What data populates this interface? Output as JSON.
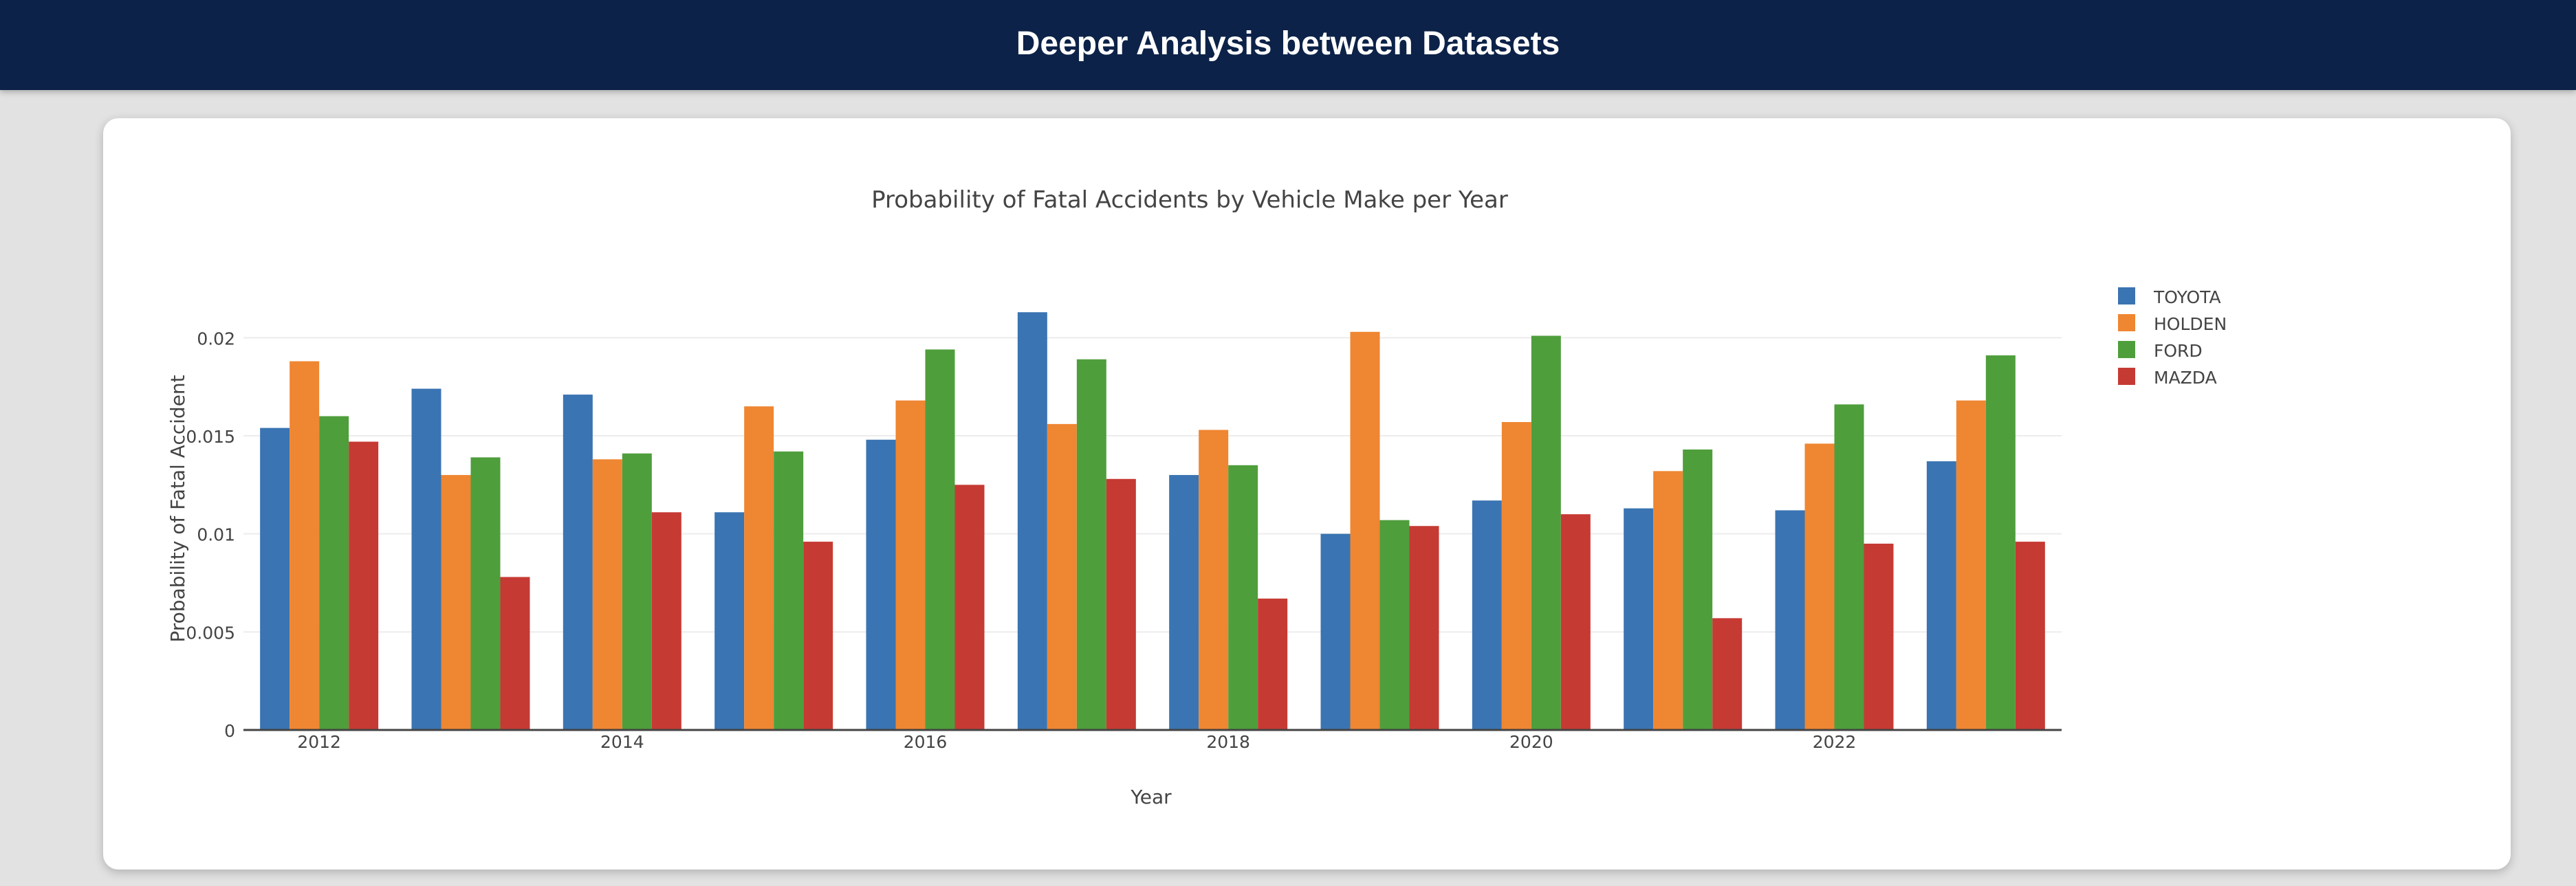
{
  "header": {
    "title": "Deeper Analysis between Datasets"
  },
  "colors": {
    "header_bg": "#0c2248",
    "TOYOTA": "#3a74b2",
    "HOLDEN": "#ef8632",
    "FORD": "#4f9e3c",
    "MAZDA": "#c63a34"
  },
  "chart_data": {
    "type": "bar",
    "title": "Probability of Fatal Accidents by Vehicle Make per Year",
    "xlabel": "Year",
    "ylabel": "Probability of Fatal Accident",
    "categories": [
      "2012",
      "2013",
      "2014",
      "2015",
      "2016",
      "2017",
      "2018",
      "2019",
      "2020",
      "2021",
      "2022",
      "2023"
    ],
    "x_tick_labels": [
      "2012",
      "2014",
      "2016",
      "2018",
      "2020",
      "2022"
    ],
    "y_ticks": [
      0,
      0.005,
      0.01,
      0.015,
      0.02
    ],
    "y_tick_labels": [
      "0",
      "0.005",
      "0.01",
      "0.015",
      "0.02"
    ],
    "ylim": [
      0,
      0.0225
    ],
    "grid": true,
    "legend_position": "top-right",
    "series": [
      {
        "name": "TOYOTA",
        "values": [
          0.0154,
          0.0174,
          0.0171,
          0.0111,
          0.0148,
          0.0213,
          0.013,
          0.01,
          0.0117,
          0.0113,
          0.0112,
          0.0137
        ]
      },
      {
        "name": "HOLDEN",
        "values": [
          0.0188,
          0.013,
          0.0138,
          0.0165,
          0.0168,
          0.0156,
          0.0153,
          0.0203,
          0.0157,
          0.0132,
          0.0146,
          0.0168
        ]
      },
      {
        "name": "FORD",
        "values": [
          0.016,
          0.0139,
          0.0141,
          0.0142,
          0.0194,
          0.0189,
          0.0135,
          0.0107,
          0.0201,
          0.0143,
          0.0166,
          0.0191
        ]
      },
      {
        "name": "MAZDA",
        "values": [
          0.0147,
          0.0078,
          0.0111,
          0.0096,
          0.0125,
          0.0128,
          0.0067,
          0.0104,
          0.011,
          0.0057,
          0.0095,
          0.0096
        ]
      }
    ]
  }
}
